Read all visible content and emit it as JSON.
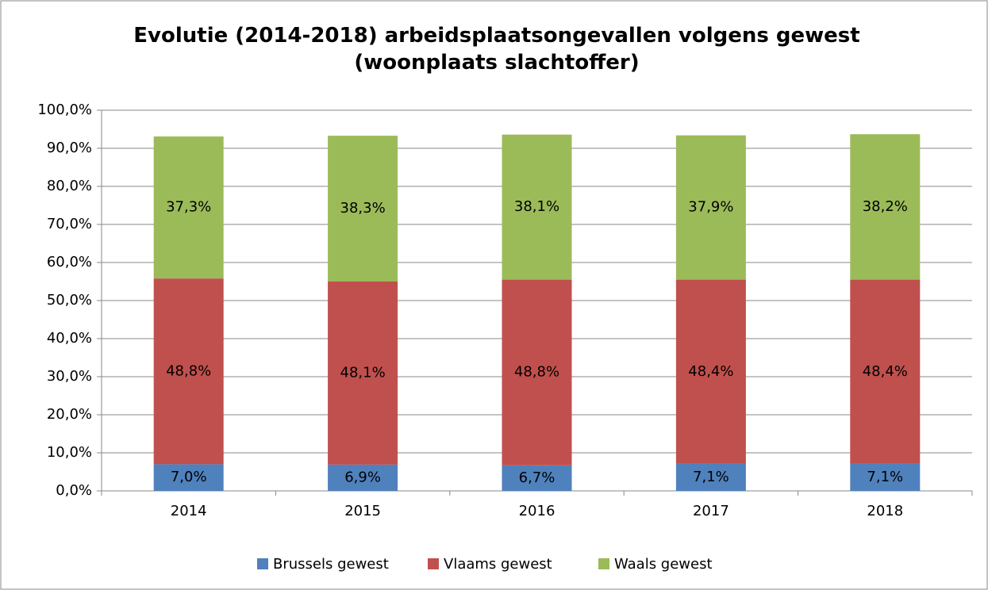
{
  "chart_data": {
    "type": "stacked_bar",
    "title": "Evolutie (2014-2018) arbeidsplaatsongevallen volgens gewest (woonplaats slachtoffer)",
    "categories": [
      "2014",
      "2015",
      "2016",
      "2017",
      "2018"
    ],
    "series": [
      {
        "name": "Brussels gewest",
        "color": "#4f81bd",
        "values": [
          7.0,
          6.9,
          6.7,
          7.1,
          7.1
        ],
        "value_labels": [
          "7,0%",
          "6,9%",
          "6,7%",
          "7,1%",
          "7,1%"
        ]
      },
      {
        "name": "Vlaams gewest",
        "color": "#c0504d",
        "values": [
          48.8,
          48.1,
          48.8,
          48.4,
          48.4
        ],
        "value_labels": [
          "48,8%",
          "48,1%",
          "48,8%",
          "48,4%",
          "48,4%"
        ]
      },
      {
        "name": "Waals gewest",
        "color": "#9bbb59",
        "values": [
          37.3,
          38.3,
          38.1,
          37.9,
          38.2
        ],
        "value_labels": [
          "37,3%",
          "38,3%",
          "38,1%",
          "37,9%",
          "38,2%"
        ]
      }
    ],
    "ylim": [
      0,
      100
    ],
    "yticks": [
      {
        "value": 0,
        "label": "0,0%"
      },
      {
        "value": 10,
        "label": "10,0%"
      },
      {
        "value": 20,
        "label": "20,0%"
      },
      {
        "value": 30,
        "label": "30,0%"
      },
      {
        "value": 40,
        "label": "40,0%"
      },
      {
        "value": 50,
        "label": "50,0%"
      },
      {
        "value": 60,
        "label": "60,0%"
      },
      {
        "value": 70,
        "label": "70,0%"
      },
      {
        "value": 80,
        "label": "80,0%"
      },
      {
        "value": 90,
        "label": "90,0%"
      },
      {
        "value": 100,
        "label": "100,0%"
      }
    ],
    "grid": true,
    "legend": "bottom"
  }
}
